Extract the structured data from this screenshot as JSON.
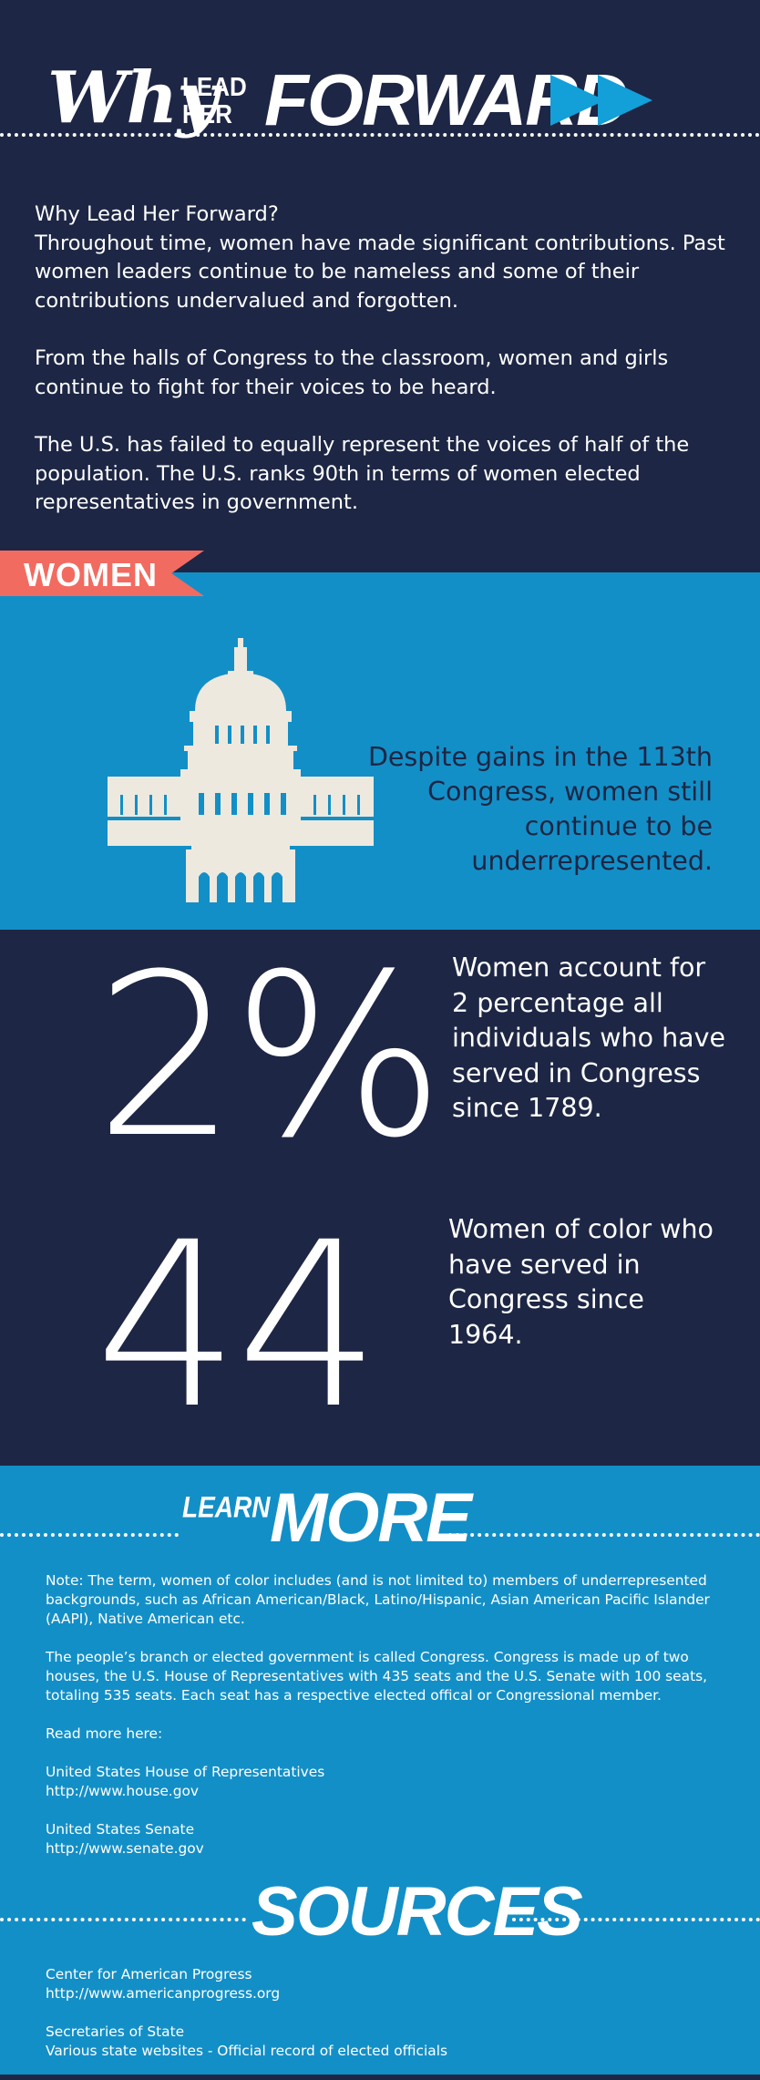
{
  "logo": {
    "why": "Why",
    "lead": "LEAD",
    "her": "HER",
    "forward": "FORWARD"
  },
  "intro": {
    "paragraph1_line1": "Why Lead Her Forward?",
    "paragraph1_line2": "Throughout time, women have made significant contributions. Past women leaders continue to be nameless and some of their contributions undervalued and forgotten.",
    "paragraph2": "From the halls of Congress to the classroom, women and girls continue to fight for their voices to be heard.",
    "paragraph3": "The U.S. has failed to equally represent the voices of half of the population. The U.S. ranks 90th in terms of women elected representatives in government."
  },
  "women_section": {
    "ribbon_label": "WOMEN",
    "capitol_caption": "Despite gains in the 113th Congress, women still continue to be underrepresented."
  },
  "stats": [
    {
      "value": "2%",
      "description": "Women account for 2 percentage all individuals who have served in Congress since 1789."
    },
    {
      "value": "44",
      "description": "Women of color who have served in Congress since 1964."
    }
  ],
  "learn_more": {
    "title_small": "LEARN",
    "title_big": "MORE",
    "note": "Note: The term, women of color includes (and is not limited to) members of underrepresented backgrounds, such as African American/Black, Latino/Hispanic, Asian American Pacific Islander (AAPI), Native American etc.",
    "congress_info": "The people’s branch or elected government is called Congress. Congress is made up of two houses, the U.S. House of Representatives with 435 seats and the U.S. Senate with 100 seats, totaling 535 seats. Each seat has a respective elected offical or Congressional member.",
    "read_more_label": "Read more here:",
    "links": [
      {
        "name": "United States House of Representatives",
        "url": "http://www.house.gov"
      },
      {
        "name": "United States Senate",
        "url": "http://www.senate.gov"
      }
    ]
  },
  "sources": {
    "title": "SOURCES",
    "items": [
      {
        "name": "Center for American Progress",
        "detail": "http://www.americanprogress.org"
      },
      {
        "name": "Secretaries of State",
        "detail": "Various state websites - Official record of elected officials"
      }
    ]
  },
  "colors": {
    "navy": "#1d2644",
    "blue": "#138fc7",
    "coral": "#f26b60",
    "cream": "#ede9df"
  }
}
